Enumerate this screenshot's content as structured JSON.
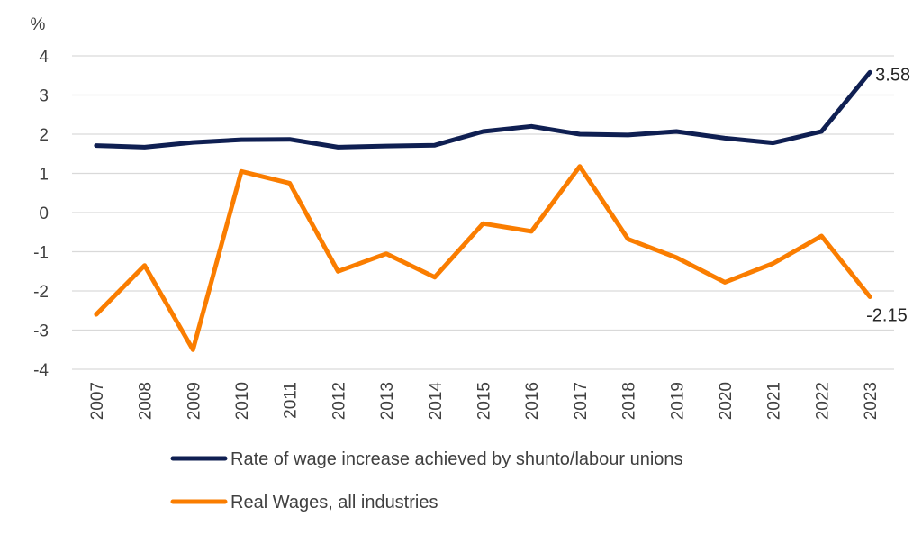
{
  "chart_data": {
    "type": "line",
    "unit_label": "%",
    "categories": [
      "2007",
      "2008",
      "2009",
      "2010",
      "2011",
      "2012",
      "2013",
      "2014",
      "2015",
      "2016",
      "2017",
      "2018",
      "2019",
      "2020",
      "2021",
      "2022",
      "2023"
    ],
    "ylim": [
      -4,
      4
    ],
    "yticks": [
      "4",
      "3",
      "2",
      "1",
      "0",
      "-1",
      "-2",
      "-3",
      "-4"
    ],
    "grid": true,
    "legend_position": "bottom",
    "series": [
      {
        "name": "Rate of wage increase achieved by shunto/labour unions",
        "color": "#0f1f52",
        "values": [
          1.71,
          1.67,
          1.79,
          1.86,
          1.87,
          1.67,
          1.7,
          1.72,
          2.07,
          2.2,
          2.0,
          1.98,
          2.07,
          1.9,
          1.78,
          2.07,
          3.58
        ],
        "end_label": "3.58"
      },
      {
        "name": "Real Wages, all industries",
        "color": "#fa7d00",
        "values": [
          -2.6,
          -1.35,
          -3.5,
          1.05,
          0.75,
          -1.5,
          -1.05,
          -1.65,
          -0.28,
          -0.48,
          1.18,
          -0.68,
          -1.15,
          -1.78,
          -1.3,
          -0.6,
          -2.15
        ],
        "end_label": "-2.15"
      }
    ]
  }
}
